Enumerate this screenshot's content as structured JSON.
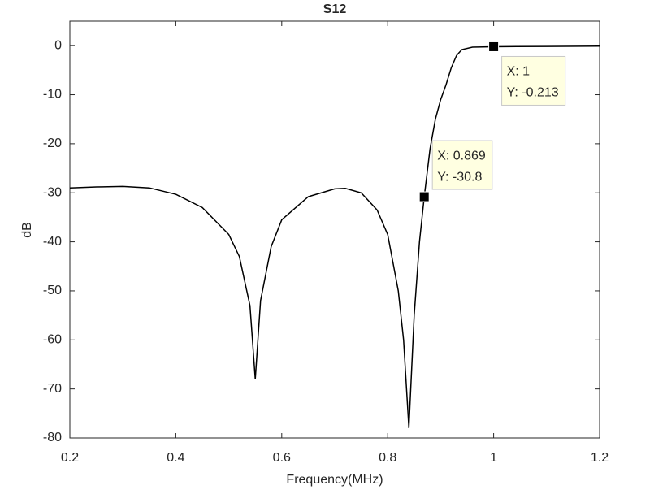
{
  "chart_data": {
    "type": "line",
    "title": "S12",
    "x_label": "Frequency(MHz)",
    "y_label": "dB",
    "xlim": [
      0.2,
      1.2
    ],
    "xticks": [
      0.2,
      0.4,
      0.6,
      0.8,
      1,
      1.2
    ],
    "ylim": [
      -80,
      5
    ],
    "yticks": [
      -80,
      -70,
      -60,
      -50,
      -40,
      -30,
      -20,
      -10,
      0
    ],
    "grid": false,
    "series": [
      {
        "name": "S12",
        "color": "#000000",
        "x": [
          0.2,
          0.25,
          0.3,
          0.35,
          0.4,
          0.45,
          0.5,
          0.52,
          0.54,
          0.55,
          0.56,
          0.58,
          0.6,
          0.65,
          0.7,
          0.72,
          0.75,
          0.78,
          0.8,
          0.82,
          0.83,
          0.84,
          0.85,
          0.86,
          0.869,
          0.88,
          0.89,
          0.9,
          0.91,
          0.92,
          0.93,
          0.94,
          0.96,
          1.0,
          1.1,
          1.2
        ],
        "values": [
          -29.0,
          -28.8,
          -28.7,
          -29.0,
          -30.3,
          -33.0,
          -38.5,
          -43,
          -53,
          -68,
          -52,
          -41,
          -35.5,
          -30.8,
          -29.2,
          -29.1,
          -30,
          -33.5,
          -38.5,
          -50,
          -60,
          -78,
          -55,
          -40,
          -30.8,
          -21,
          -15,
          -11,
          -8,
          -4.5,
          -2,
          -0.8,
          -0.3,
          -0.213,
          -0.15,
          -0.1
        ]
      }
    ],
    "annotations": [
      {
        "x": 1,
        "y": -0.213,
        "label_x": "X: 1",
        "label_y": "Y: -0.213"
      },
      {
        "x": 0.869,
        "y": -30.8,
        "label_x": "X: 0.869",
        "label_y": "Y: -30.8"
      }
    ]
  }
}
